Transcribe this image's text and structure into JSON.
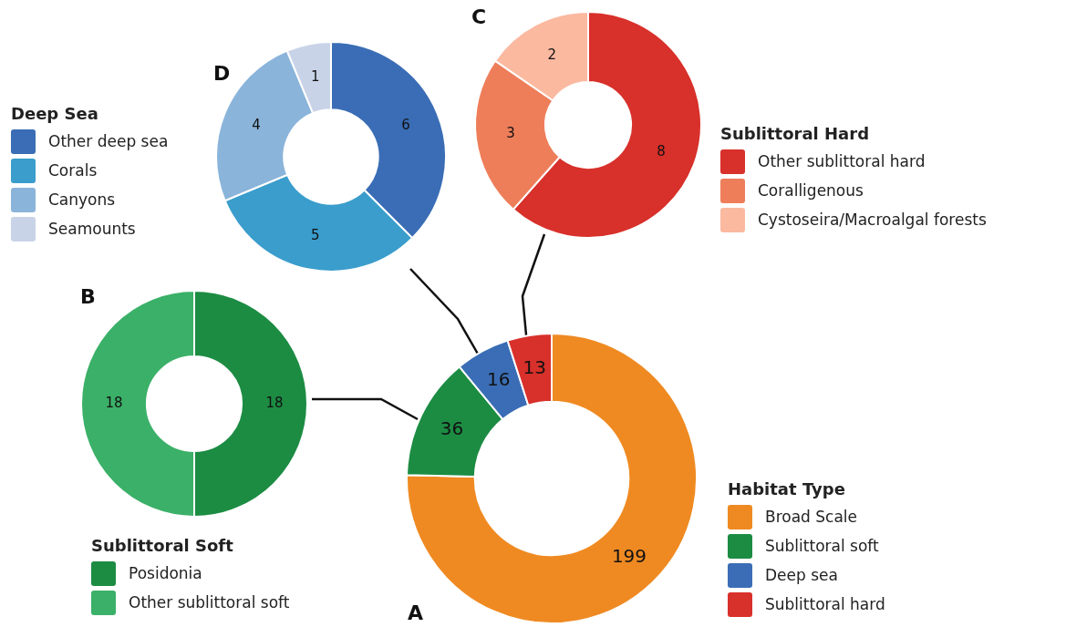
{
  "chart_data": [
    {
      "type": "donut",
      "title": "A",
      "legend_title": "Habitat Type",
      "categories": [
        "Broad Scale",
        "Sublittoral soft",
        "Deep sea",
        "Sublittoral hard"
      ],
      "values": [
        199,
        36,
        16,
        13
      ],
      "colors": [
        "#ef8a22",
        "#1c8c43",
        "#3a6db5",
        "#d8302a"
      ],
      "data_labels": true,
      "legend": "bottom right"
    },
    {
      "type": "donut",
      "title": "B",
      "legend_title": "Sublittoral Soft",
      "categories": [
        "Posidonia",
        "Other sublittoral soft"
      ],
      "values": [
        18,
        18
      ],
      "colors": [
        "#1c8c43",
        "#3bb068"
      ],
      "data_labels": true,
      "legend": "bottom"
    },
    {
      "type": "donut",
      "title": "C",
      "legend_title": "Sublittoral Hard",
      "categories": [
        "Other sublittoral hard",
        "Coralligenous",
        "Cystoseira/Macroalgal forests"
      ],
      "values": [
        8,
        3,
        2
      ],
      "colors": [
        "#d8302a",
        "#ee7e5a",
        "#fbb9a0"
      ],
      "data_labels": true,
      "legend": "right"
    },
    {
      "type": "donut",
      "title": "D",
      "legend_title": "Deep Sea",
      "categories": [
        "Other deep sea",
        "Corals",
        "Canyons",
        "Seamounts"
      ],
      "values": [
        6,
        5,
        4,
        1
      ],
      "colors": [
        "#3a6db5",
        "#3a9dcc",
        "#8ab4da",
        "#c9d3e8"
      ],
      "data_labels": true,
      "legend": "left"
    }
  ]
}
